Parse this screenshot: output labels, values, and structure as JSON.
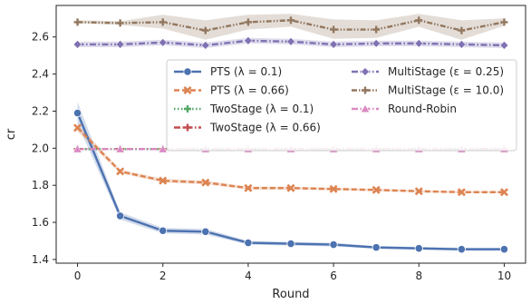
{
  "chart_data": {
    "type": "line",
    "xlabel": "Round",
    "ylabel": "cr",
    "xlim": [
      -0.5,
      10.5
    ],
    "ylim": [
      1.38,
      2.77
    ],
    "x_ticks": [
      0,
      2,
      4,
      6,
      8,
      10
    ],
    "y_ticks": [
      1.4,
      1.6,
      1.8,
      2.0,
      2.2,
      2.4,
      2.6
    ],
    "grid": false,
    "legend_position": "center-right",
    "x": [
      0,
      1,
      2,
      3,
      4,
      5,
      6,
      7,
      8,
      9,
      10
    ],
    "series": [
      {
        "name": "PTS (λ = 0.1)",
        "color": "#4c72b0",
        "marker": "circle",
        "dash": "solid",
        "values": [
          2.19,
          1.635,
          1.555,
          1.55,
          1.49,
          1.485,
          1.48,
          1.465,
          1.46,
          1.455,
          1.455
        ],
        "band_low": [
          2.13,
          1.615,
          1.54,
          1.535,
          1.48,
          1.475,
          1.47,
          1.458,
          1.452,
          1.447,
          1.447
        ],
        "band_high": [
          2.25,
          1.655,
          1.57,
          1.565,
          1.5,
          1.495,
          1.49,
          1.472,
          1.468,
          1.463,
          1.463
        ]
      },
      {
        "name": "PTS (λ = 0.66)",
        "color": "#dd8452",
        "marker": "x",
        "dash": "dashed",
        "values": [
          2.11,
          1.875,
          1.825,
          1.815,
          1.785,
          1.785,
          1.78,
          1.775,
          1.768,
          1.763,
          1.763
        ],
        "band_low": [
          2.09,
          1.865,
          1.815,
          1.805,
          1.777,
          1.777,
          1.773,
          1.768,
          1.762,
          1.757,
          1.757
        ],
        "band_high": [
          2.13,
          1.885,
          1.835,
          1.825,
          1.793,
          1.793,
          1.787,
          1.782,
          1.774,
          1.769,
          1.769
        ]
      },
      {
        "name": "TwoStage (λ = 0.1)",
        "color": "#55a868",
        "marker": "plus",
        "dash": "dotted",
        "values": [
          1.995,
          1.995,
          1.995,
          1.995,
          1.995,
          1.995,
          1.995,
          1.995,
          1.995,
          1.995,
          1.995
        ]
      },
      {
        "name": "TwoStage (λ = 0.66)",
        "color": "#c44e52",
        "marker": "plus",
        "dash": "dashdot",
        "values": [
          1.995,
          1.995,
          1.995,
          1.995,
          1.995,
          1.995,
          1.995,
          1.995,
          1.995,
          1.995,
          1.995
        ]
      },
      {
        "name": "MultiStage (ε = 0.25)",
        "color": "#8172b3",
        "marker": "diamond",
        "dash": "dashdot",
        "values": [
          2.56,
          2.56,
          2.57,
          2.555,
          2.58,
          2.575,
          2.56,
          2.565,
          2.565,
          2.56,
          2.555
        ],
        "band_low": [
          2.545,
          2.545,
          2.555,
          2.54,
          2.565,
          2.56,
          2.545,
          2.55,
          2.55,
          2.545,
          2.54
        ],
        "band_high": [
          2.575,
          2.575,
          2.585,
          2.57,
          2.595,
          2.59,
          2.575,
          2.58,
          2.58,
          2.575,
          2.57
        ]
      },
      {
        "name": "MultiStage (ε = 10.0)",
        "color": "#937860",
        "marker": "plus",
        "dash": "dashdotdot",
        "values": [
          2.68,
          2.675,
          2.68,
          2.635,
          2.68,
          2.69,
          2.64,
          2.64,
          2.69,
          2.635,
          2.68
        ],
        "band_low": [
          2.675,
          2.665,
          2.645,
          2.585,
          2.64,
          2.655,
          2.59,
          2.595,
          2.655,
          2.585,
          2.66
        ],
        "band_high": [
          2.69,
          2.685,
          2.72,
          2.69,
          2.72,
          2.725,
          2.695,
          2.69,
          2.725,
          2.69,
          2.7
        ]
      },
      {
        "name": "Round-Robin",
        "color": "#da8bc3",
        "marker": "triangle",
        "dash": "dashdot",
        "values": [
          1.995,
          1.995,
          1.995,
          1.995,
          1.995,
          1.995,
          1.995,
          1.995,
          1.995,
          1.995,
          1.995
        ]
      }
    ]
  }
}
